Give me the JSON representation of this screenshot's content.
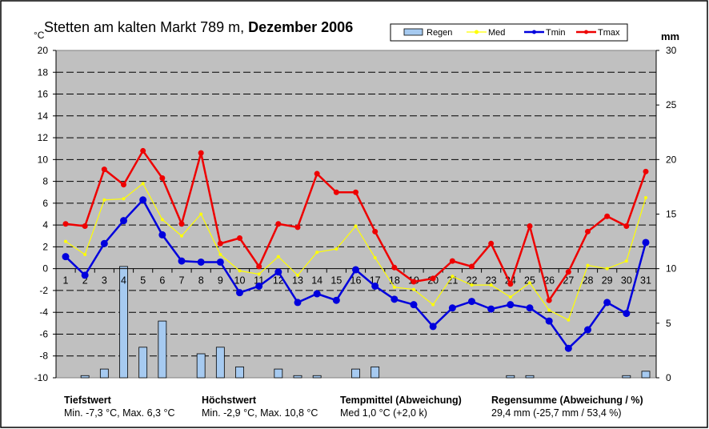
{
  "chart_data": {
    "type": "line",
    "title_regular": "Stetten am kalten Markt  789 m, ",
    "title_bold": "Dezember 2006",
    "ylabel_left": "°C",
    "ylabel_right": "mm",
    "ylim_left": [
      -10,
      20
    ],
    "ylim_right": [
      0,
      30
    ],
    "left_ticks": [
      "-10",
      "-8",
      "-6",
      "-4",
      "-2",
      "0",
      "2",
      "4",
      "6",
      "8",
      "10",
      "12",
      "14",
      "16",
      "18",
      "20"
    ],
    "right_ticks": [
      "0",
      "5",
      "10",
      "15",
      "20",
      "25",
      "30"
    ],
    "x": [
      1,
      2,
      3,
      4,
      5,
      6,
      7,
      8,
      9,
      10,
      11,
      12,
      13,
      14,
      15,
      16,
      17,
      18,
      19,
      20,
      21,
      22,
      23,
      24,
      25,
      26,
      27,
      28,
      29,
      30,
      31
    ],
    "grid": true,
    "legend_position": "top-right",
    "series": [
      {
        "name": "Regen",
        "type": "bar",
        "axis": "right",
        "color": "#a6caf0",
        "values": [
          0,
          0.2,
          0.8,
          10.2,
          2.8,
          5.2,
          0,
          2.2,
          2.8,
          1.0,
          0,
          0.8,
          0.2,
          0.2,
          0,
          0.8,
          1.0,
          0,
          0,
          0,
          0,
          0,
          0,
          0.2,
          0.2,
          0,
          0,
          0,
          0,
          0.2,
          0.6
        ]
      },
      {
        "name": "Med",
        "type": "line",
        "axis": "left",
        "color": "#ffff00",
        "values": [
          2.5,
          1.3,
          6.3,
          6.4,
          7.8,
          4.5,
          3.0,
          5.0,
          1.3,
          -0.2,
          -0.5,
          1.1,
          -0.6,
          1.5,
          1.8,
          3.9,
          1.0,
          -1.7,
          -1.9,
          -3.3,
          -0.7,
          -1.5,
          -1.5,
          -2.6,
          -1.3,
          -3.8,
          -4.7,
          0.3,
          0.0,
          0.7,
          6.5
        ]
      },
      {
        "name": "Tmin",
        "type": "line",
        "axis": "left",
        "color": "#0000dd",
        "values": [
          1.1,
          -0.6,
          2.3,
          4.4,
          6.3,
          3.1,
          0.7,
          0.6,
          0.6,
          -2.2,
          -1.6,
          -0.3,
          -3.1,
          -2.3,
          -2.9,
          -0.1,
          -1.6,
          -2.8,
          -3.3,
          -5.3,
          -3.6,
          -3.0,
          -3.7,
          -3.3,
          -3.6,
          -4.8,
          -7.3,
          -5.6,
          -3.1,
          -4.1,
          2.4
        ]
      },
      {
        "name": "Tmax",
        "type": "line",
        "axis": "left",
        "color": "#ee0000",
        "values": [
          4.1,
          3.9,
          9.1,
          7.7,
          10.8,
          8.3,
          4.1,
          10.6,
          2.3,
          2.8,
          0.2,
          4.1,
          3.8,
          8.7,
          7.0,
          7.0,
          3.4,
          0.1,
          -1.2,
          -0.9,
          0.7,
          0.2,
          2.3,
          -1.4,
          3.9,
          -2.9,
          -0.3,
          3.4,
          4.8,
          3.9,
          8.9
        ]
      }
    ]
  },
  "footer": [
    {
      "heading": "Tiefstwert",
      "text": "Min. -7,3 °C, Max. 6,3 °C"
    },
    {
      "heading": "Höchstwert",
      "text": "Min. -2,9 °C, Max. 10,8 °C"
    },
    {
      "heading": "Tempmittel (Abweichung)",
      "text": "Med 1,0 °C (+2,0 k)"
    },
    {
      "heading": "Regensumme (Abweichung / %)",
      "text": "29,4  mm (-25,7 mm / 53,4 %)"
    }
  ]
}
